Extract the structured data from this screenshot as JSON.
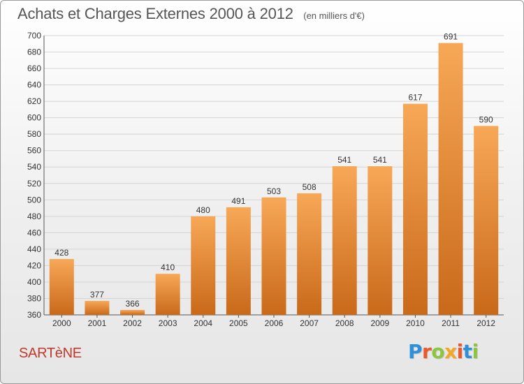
{
  "header": {
    "title": "Achats et Charges Externes 2000 à 2012",
    "subtitle": "(en milliers d'€)"
  },
  "footer": {
    "place": "SARTèNE",
    "logo_text": "Proxiti"
  },
  "colors": {
    "bar_top": "#f7a857",
    "bar_bottom": "#c9691a",
    "grid": "#d4d4d4",
    "place_text": "#c0392b",
    "logo_letters": [
      "#2f8fd8",
      "#e8592b",
      "#8cc63f",
      "#f5a623",
      "#e8592b",
      "#2f8fd8",
      "#8cc63f"
    ]
  },
  "chart_data": {
    "type": "bar",
    "title": "Achats et Charges Externes 2000 à 2012",
    "subtitle": "(en milliers d'€)",
    "categories": [
      "2000",
      "2001",
      "2002",
      "2003",
      "2004",
      "2005",
      "2006",
      "2007",
      "2008",
      "2009",
      "2010",
      "2011",
      "2012"
    ],
    "values": [
      428,
      377,
      366,
      410,
      480,
      491,
      503,
      508,
      541,
      541,
      617,
      691,
      590
    ],
    "ylim": [
      360,
      700
    ],
    "yticks": [
      360,
      380,
      400,
      420,
      440,
      460,
      480,
      500,
      520,
      540,
      560,
      580,
      600,
      620,
      640,
      660,
      680,
      700
    ],
    "grid": true,
    "xlabel": "",
    "ylabel": ""
  }
}
